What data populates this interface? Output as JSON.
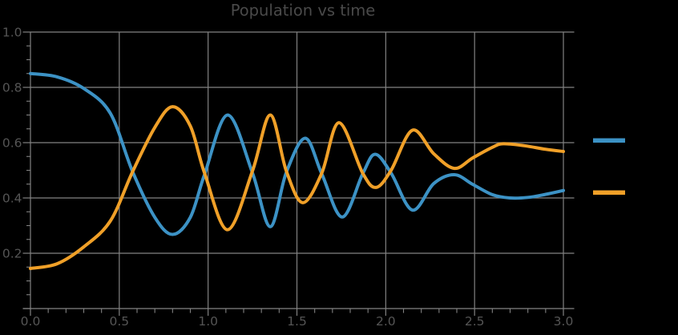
{
  "title": "Population vs time",
  "styles": {
    "background": "#000000",
    "grid_color": "#828282",
    "tick_color": "#828282",
    "text_color": "#555555",
    "title_color": "#4a4a4a",
    "line_width": 4
  },
  "chart_data": {
    "type": "line",
    "title": "Population vs time",
    "xlabel": "",
    "ylabel": "",
    "xlim": [
      0,
      3
    ],
    "ylim": [
      0,
      1
    ],
    "grid": true,
    "x_tick_values": [
      0,
      0.5,
      1,
      1.5,
      2,
      2.5,
      3
    ],
    "x_tick_labels": [
      "0.0",
      "0.5",
      "1.0",
      "1.5",
      "2.0",
      "2.5",
      "3.0"
    ],
    "y_tick_values": [
      1,
      0.8,
      0.6,
      0.4,
      0.2
    ],
    "y_tick_labels": [
      "1.0",
      "0.8",
      "0.6",
      "0.4",
      "0.2"
    ],
    "y_grid_values": [
      0,
      0.2,
      0.4,
      0.6,
      0.8,
      1
    ],
    "x_minor_tick_step": 0.1,
    "y_minor_tick_step": 0.05,
    "legend": {
      "position": "right-outside",
      "labels_visible": false,
      "entries": [
        {
          "series": "series1",
          "color": "#3C92C5",
          "label": ""
        },
        {
          "series": "series2",
          "color": "#F0A028",
          "label": ""
        }
      ]
    },
    "series": [
      {
        "name": "series1",
        "color": "#3C92C5",
        "points": [
          [
            0.0,
            0.85
          ],
          [
            0.15,
            0.838
          ],
          [
            0.3,
            0.796
          ],
          [
            0.45,
            0.706
          ],
          [
            0.575,
            0.495
          ],
          [
            0.7,
            0.33
          ],
          [
            0.8,
            0.268
          ],
          [
            0.9,
            0.33
          ],
          [
            0.98,
            0.485
          ],
          [
            1.11,
            0.7
          ],
          [
            1.25,
            0.49
          ],
          [
            1.35,
            0.296
          ],
          [
            1.44,
            0.492
          ],
          [
            1.547,
            0.616
          ],
          [
            1.64,
            0.487
          ],
          [
            1.755,
            0.331
          ],
          [
            1.87,
            0.487
          ],
          [
            1.94,
            0.558
          ],
          [
            2.03,
            0.49
          ],
          [
            2.15,
            0.356
          ],
          [
            2.27,
            0.452
          ],
          [
            2.386,
            0.484
          ],
          [
            2.49,
            0.449
          ],
          [
            2.6,
            0.412
          ],
          [
            2.7,
            0.4
          ],
          [
            2.8,
            0.402
          ],
          [
            2.9,
            0.413
          ],
          [
            3.0,
            0.427
          ]
        ]
      },
      {
        "name": "series2",
        "color": "#F0A028",
        "points": [
          [
            0.0,
            0.145
          ],
          [
            0.15,
            0.162
          ],
          [
            0.3,
            0.223
          ],
          [
            0.45,
            0.317
          ],
          [
            0.575,
            0.495
          ],
          [
            0.7,
            0.655
          ],
          [
            0.8,
            0.73
          ],
          [
            0.9,
            0.66
          ],
          [
            0.98,
            0.49
          ],
          [
            1.11,
            0.285
          ],
          [
            1.25,
            0.498
          ],
          [
            1.35,
            0.7
          ],
          [
            1.44,
            0.498
          ],
          [
            1.533,
            0.383
          ],
          [
            1.64,
            0.49
          ],
          [
            1.737,
            0.672
          ],
          [
            1.87,
            0.49
          ],
          [
            1.945,
            0.438
          ],
          [
            2.03,
            0.5
          ],
          [
            2.15,
            0.645
          ],
          [
            2.27,
            0.56
          ],
          [
            2.386,
            0.507
          ],
          [
            2.49,
            0.545
          ],
          [
            2.6,
            0.583
          ],
          [
            2.66,
            0.596
          ],
          [
            2.78,
            0.589
          ],
          [
            2.9,
            0.576
          ],
          [
            3.0,
            0.568
          ]
        ]
      }
    ]
  }
}
